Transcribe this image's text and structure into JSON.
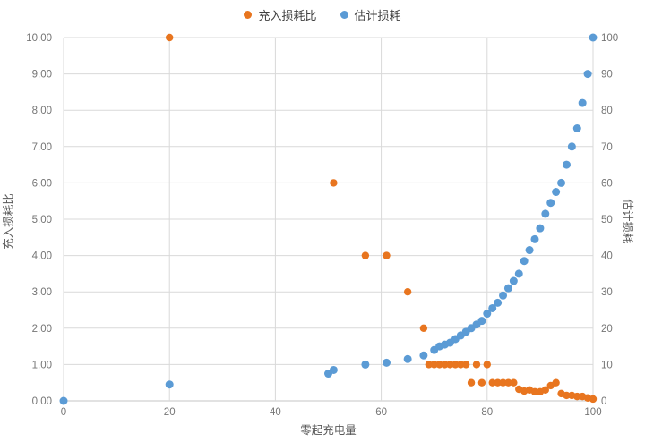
{
  "chart_data": {
    "type": "scatter",
    "title": "",
    "xlabel": "零起充电量",
    "ylabel_left": "充入损耗比",
    "ylabel_right": "估计损耗",
    "xlim": [
      0,
      100
    ],
    "ylim_left": [
      0,
      10
    ],
    "ylim_right": [
      0,
      100
    ],
    "grid": true,
    "legend_position": "top-center",
    "x_ticks": [
      "0",
      "20",
      "40",
      "60",
      "80",
      "100"
    ],
    "y_left_ticks": [
      "0.00",
      "1.00",
      "2.00",
      "3.00",
      "4.00",
      "5.00",
      "6.00",
      "7.00",
      "8.00",
      "9.00",
      "10.00"
    ],
    "y_right_ticks": [
      "0",
      "10",
      "20",
      "30",
      "40",
      "50",
      "60",
      "70",
      "80",
      "90",
      "100"
    ],
    "grid_color": "#d9d9d9",
    "axis_line_color": "#c6c6c6",
    "tick_label_color": "#757575",
    "series": [
      {
        "name": "充入损耗比",
        "color": "#e8751f",
        "axis": "left",
        "marker_radius": 4.2,
        "points": [
          [
            20,
            10
          ],
          [
            51,
            6
          ],
          [
            57,
            4
          ],
          [
            61,
            4
          ],
          [
            65,
            3
          ],
          [
            68,
            2
          ],
          [
            69,
            1
          ],
          [
            70,
            1
          ],
          [
            71,
            1
          ],
          [
            72,
            1
          ],
          [
            73,
            1
          ],
          [
            74,
            1
          ],
          [
            75,
            1
          ],
          [
            76,
            1
          ],
          [
            78,
            1
          ],
          [
            80,
            1
          ],
          [
            77,
            0.5
          ],
          [
            79,
            0.5
          ],
          [
            81,
            0.5
          ],
          [
            82,
            0.5
          ],
          [
            83,
            0.5
          ],
          [
            84,
            0.5
          ],
          [
            85,
            0.5
          ],
          [
            86,
            0.32
          ],
          [
            87,
            0.27
          ],
          [
            88,
            0.3
          ],
          [
            89,
            0.25
          ],
          [
            90,
            0.25
          ],
          [
            91,
            0.3
          ],
          [
            92,
            0.42
          ],
          [
            93,
            0.5
          ],
          [
            94,
            0.2
          ],
          [
            95,
            0.15
          ],
          [
            96,
            0.15
          ],
          [
            97,
            0.12
          ],
          [
            98,
            0.12
          ],
          [
            99,
            0.08
          ],
          [
            100,
            0.05
          ]
        ]
      },
      {
        "name": "估计损耗",
        "color": "#5b9bd5",
        "axis": "right",
        "marker_radius": 4.5,
        "points": [
          [
            0,
            0
          ],
          [
            20,
            4.5
          ],
          [
            50,
            7.5
          ],
          [
            51,
            8.5
          ],
          [
            57,
            10
          ],
          [
            61,
            10.5
          ],
          [
            65,
            11.5
          ],
          [
            68,
            12.5
          ],
          [
            70,
            14
          ],
          [
            71,
            15
          ],
          [
            72,
            15.5
          ],
          [
            73,
            16
          ],
          [
            74,
            17
          ],
          [
            75,
            18
          ],
          [
            76,
            19
          ],
          [
            77,
            20
          ],
          [
            78,
            21
          ],
          [
            79,
            22
          ],
          [
            80,
            24
          ],
          [
            81,
            25.5
          ],
          [
            82,
            27
          ],
          [
            83,
            29
          ],
          [
            84,
            31
          ],
          [
            85,
            33
          ],
          [
            86,
            35
          ],
          [
            87,
            38.5
          ],
          [
            88,
            41.5
          ],
          [
            89,
            44.5
          ],
          [
            90,
            47.5
          ],
          [
            91,
            51.5
          ],
          [
            92,
            54.5
          ],
          [
            93,
            57.5
          ],
          [
            94,
            60
          ],
          [
            95,
            65
          ],
          [
            96,
            70
          ],
          [
            97,
            75
          ],
          [
            98,
            82
          ],
          [
            99,
            90
          ],
          [
            100,
            100
          ]
        ]
      }
    ]
  }
}
